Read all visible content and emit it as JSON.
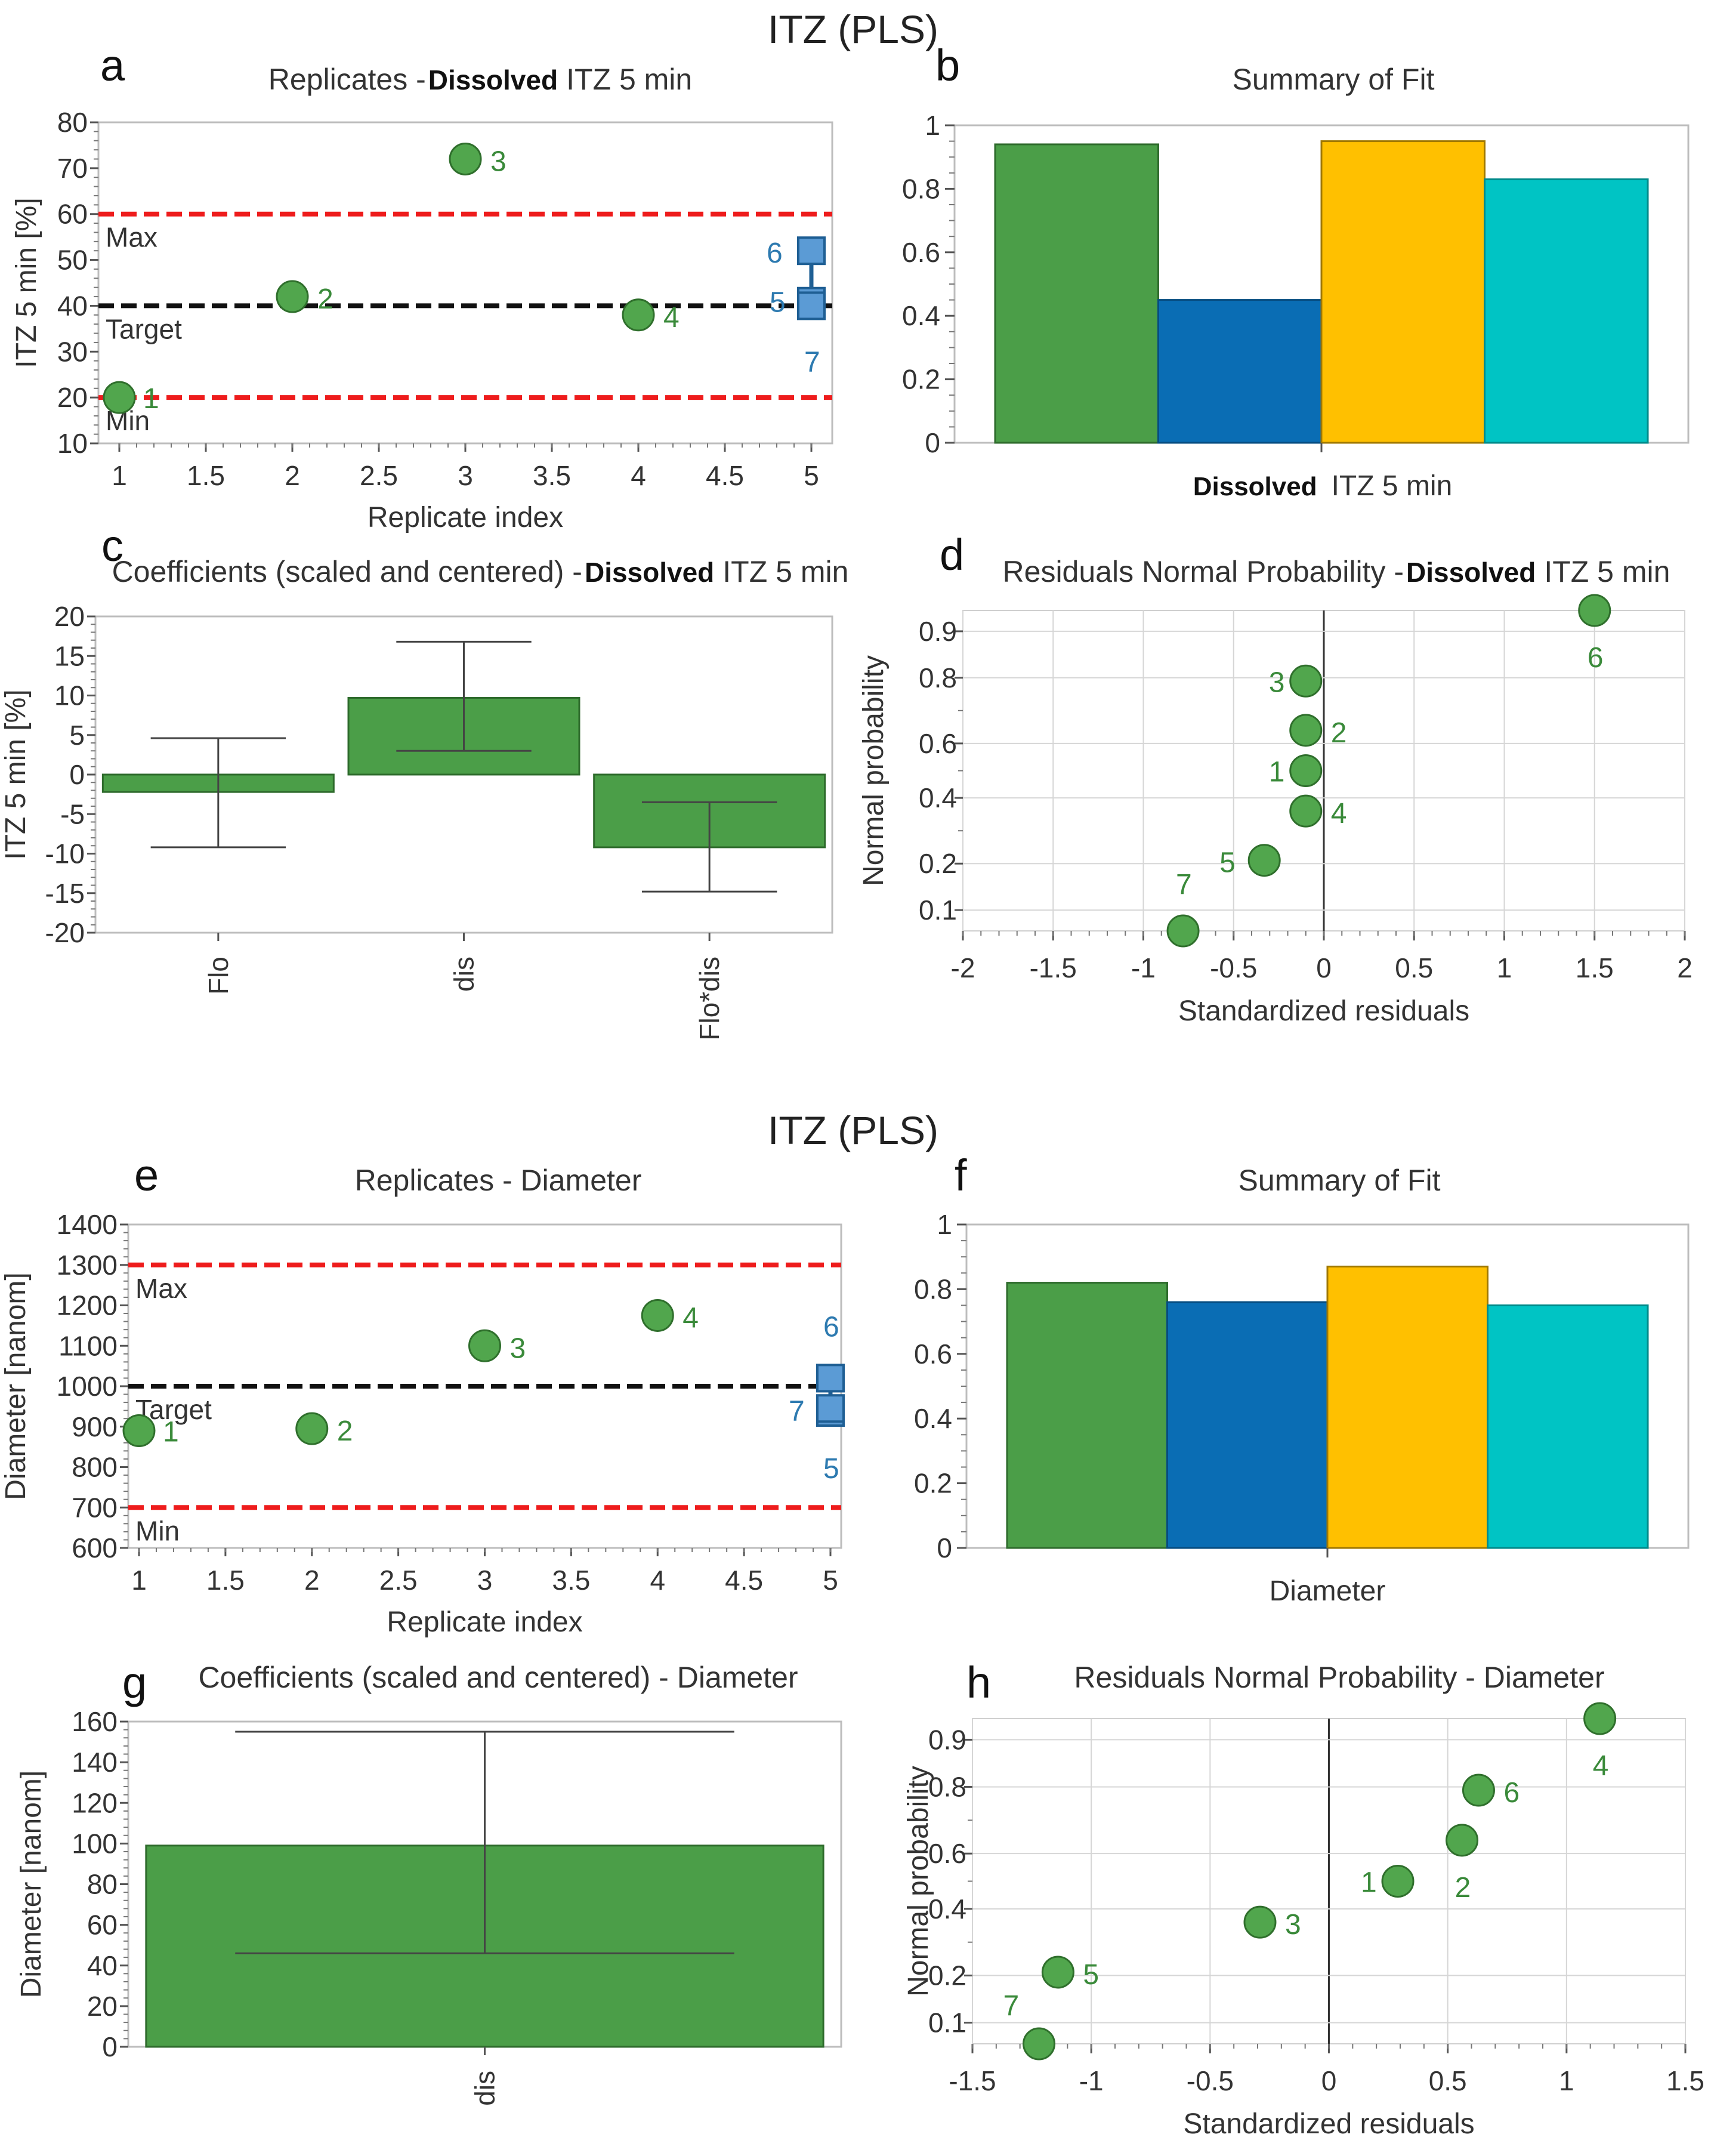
{
  "figure": {
    "header_top": "ITZ (PLS)",
    "header_bottom": "ITZ (PLS)"
  },
  "colors": {
    "green": "#4b9e48",
    "blue": "#0a6db4",
    "yellow": "#ffc000",
    "cyan": "#00c4c4",
    "marker_green": "#51a64d",
    "marker_blue": "#5b9bd5",
    "red": "#ee1c1c",
    "black": "#111111"
  },
  "panels": {
    "a": {
      "letter": "a",
      "title_prefix": "Replicates -",
      "title_bold": "Dissolved",
      "title_suffix": "ITZ 5 min"
    },
    "b": {
      "letter": "b",
      "title": "Summary of Fit"
    },
    "c": {
      "letter": "c",
      "title_prefix": "Coefficients (scaled and centered) -",
      "title_bold": "Dissolved",
      "title_suffix": "ITZ 5 min"
    },
    "d": {
      "letter": "d",
      "title_prefix": "Residuals Normal Probability -",
      "title_bold": "Dissolved",
      "title_suffix": "ITZ 5 min"
    },
    "e": {
      "letter": "e",
      "title": "Replicates - Diameter"
    },
    "f": {
      "letter": "f",
      "title": "Summary of Fit"
    },
    "g": {
      "letter": "g",
      "title": "Coefficients (scaled and centered) - Diameter"
    },
    "h": {
      "letter": "h",
      "title": "Residuals Normal Probability - Diameter"
    }
  },
  "chart_data": [
    {
      "id": "a",
      "type": "scatter",
      "xlabel": "Replicate index",
      "ylabel": "ITZ 5 min [%]",
      "xlim": [
        1,
        5
      ],
      "ylim": [
        10,
        80
      ],
      "xticks": [
        "1",
        "1.5",
        "2",
        "2.5",
        "3",
        "3.5",
        "4",
        "4.5",
        "5"
      ],
      "yticks": [
        "10",
        "20",
        "30",
        "40",
        "50",
        "60",
        "70",
        "80"
      ],
      "reference_lines": [
        {
          "label": "Max",
          "y": 60,
          "color": "red"
        },
        {
          "label": "Target",
          "y": 40,
          "color": "black"
        },
        {
          "label": "Min",
          "y": 20,
          "color": "red"
        }
      ],
      "points": [
        {
          "label": "1",
          "x": 1,
          "y": 20,
          "marker": "circle"
        },
        {
          "label": "2",
          "x": 2,
          "y": 42,
          "marker": "circle"
        },
        {
          "label": "3",
          "x": 3,
          "y": 72,
          "marker": "circle"
        },
        {
          "label": "4",
          "x": 4,
          "y": 38,
          "marker": "circle"
        },
        {
          "label": "5",
          "x": 5,
          "y": 41,
          "marker": "square"
        },
        {
          "label": "6",
          "x": 5,
          "y": 52,
          "marker": "square"
        },
        {
          "label": "7",
          "x": 5,
          "y": 40,
          "marker": "square"
        }
      ]
    },
    {
      "id": "b",
      "type": "bar",
      "xlabel_bold": "Dissolved",
      "xlabel": "ITZ 5 min",
      "ylim": [
        0,
        1
      ],
      "yticks": [
        "0",
        "0.2",
        "0.4",
        "0.6",
        "0.8",
        "1"
      ],
      "values": [
        0.94,
        0.45,
        0.95,
        0.83
      ]
    },
    {
      "id": "c",
      "type": "bar",
      "ylabel": "ITZ 5 min [%]",
      "ylim": [
        -20,
        20
      ],
      "yticks": [
        "-20",
        "-15",
        "-10",
        "-5",
        "0",
        "5",
        "10",
        "15",
        "20"
      ],
      "categories": [
        "Flo",
        "dis",
        "Flo*dis"
      ],
      "values": [
        -2.2,
        9.7,
        -9.2
      ],
      "error_low": [
        -9.2,
        3.0,
        -14.8
      ],
      "error_high": [
        4.6,
        16.8,
        -3.5
      ]
    },
    {
      "id": "d",
      "type": "scatter",
      "xlabel": "Standardized residuals",
      "ylabel": "Normal probability",
      "xlim": [
        -2,
        2
      ],
      "xticks": [
        "-2",
        "-1.5",
        "-1",
        "-0.5",
        "0",
        "0.5",
        "1",
        "1.5",
        "2"
      ],
      "yticks": [
        "0.1",
        "0.2",
        "0.4",
        "0.6",
        "0.8",
        "0.9"
      ],
      "points": [
        {
          "label": "1",
          "x": -0.1,
          "y": 0.5
        },
        {
          "label": "2",
          "x": -0.1,
          "y": 0.64
        },
        {
          "label": "3",
          "x": -0.1,
          "y": 0.79
        },
        {
          "label": "4",
          "x": -0.1,
          "y": 0.36
        },
        {
          "label": "5",
          "x": -0.33,
          "y": 0.21
        },
        {
          "label": "6",
          "x": 1.5,
          "y": 0.94
        },
        {
          "label": "7",
          "x": -0.78,
          "y": 0.06
        }
      ]
    },
    {
      "id": "e",
      "type": "scatter",
      "xlabel": "Replicate index",
      "ylabel": "Diameter [nanom]",
      "xlim": [
        1,
        5
      ],
      "ylim": [
        600,
        1400
      ],
      "xticks": [
        "1",
        "1.5",
        "2",
        "2.5",
        "3",
        "3.5",
        "4",
        "4.5",
        "5"
      ],
      "yticks": [
        "600",
        "700",
        "800",
        "900",
        "1000",
        "1100",
        "1200",
        "1300",
        "1400"
      ],
      "reference_lines": [
        {
          "label": "Max",
          "y": 1300,
          "color": "red"
        },
        {
          "label": "Target",
          "y": 1000,
          "color": "black"
        },
        {
          "label": "Min",
          "y": 700,
          "color": "red"
        }
      ],
      "points": [
        {
          "label": "1",
          "x": 1,
          "y": 890,
          "marker": "circle"
        },
        {
          "label": "2",
          "x": 2,
          "y": 895,
          "marker": "circle"
        },
        {
          "label": "3",
          "x": 3,
          "y": 1100,
          "marker": "circle"
        },
        {
          "label": "4",
          "x": 4,
          "y": 1175,
          "marker": "circle"
        },
        {
          "label": "5",
          "x": 5,
          "y": 935,
          "marker": "square"
        },
        {
          "label": "6",
          "x": 5,
          "y": 1020,
          "marker": "square"
        },
        {
          "label": "7",
          "x": 5,
          "y": 945,
          "marker": "square"
        }
      ]
    },
    {
      "id": "f",
      "type": "bar",
      "xlabel": "Diameter",
      "ylim": [
        0,
        1
      ],
      "yticks": [
        "0",
        "0.2",
        "0.4",
        "0.6",
        "0.8",
        "1"
      ],
      "values": [
        0.82,
        0.76,
        0.87,
        0.75
      ]
    },
    {
      "id": "g",
      "type": "bar",
      "ylabel": "Diameter [nanom]",
      "ylim": [
        0,
        160
      ],
      "yticks": [
        "0",
        "20",
        "40",
        "60",
        "80",
        "100",
        "120",
        "140",
        "160"
      ],
      "categories": [
        "dis"
      ],
      "values": [
        99
      ],
      "error_low": [
        46
      ],
      "error_high": [
        155
      ]
    },
    {
      "id": "h",
      "type": "scatter",
      "xlabel": "Standardized residuals",
      "ylabel": "Normal probability",
      "xlim": [
        -1.5,
        1.5
      ],
      "xticks": [
        "-1.5",
        "-1",
        "-0.5",
        "0",
        "0.5",
        "1",
        "1.5"
      ],
      "yticks": [
        "0.1",
        "0.2",
        "0.4",
        "0.6",
        "0.8",
        "0.9"
      ],
      "points": [
        {
          "label": "1",
          "x": 0.29,
          "y": 0.5
        },
        {
          "label": "2",
          "x": 0.56,
          "y": 0.64
        },
        {
          "label": "3",
          "x": -0.29,
          "y": 0.36
        },
        {
          "label": "4",
          "x": 1.14,
          "y": 0.94
        },
        {
          "label": "5",
          "x": -1.14,
          "y": 0.21
        },
        {
          "label": "6",
          "x": 0.63,
          "y": 0.79
        },
        {
          "label": "7",
          "x": -1.22,
          "y": 0.06
        }
      ]
    }
  ]
}
